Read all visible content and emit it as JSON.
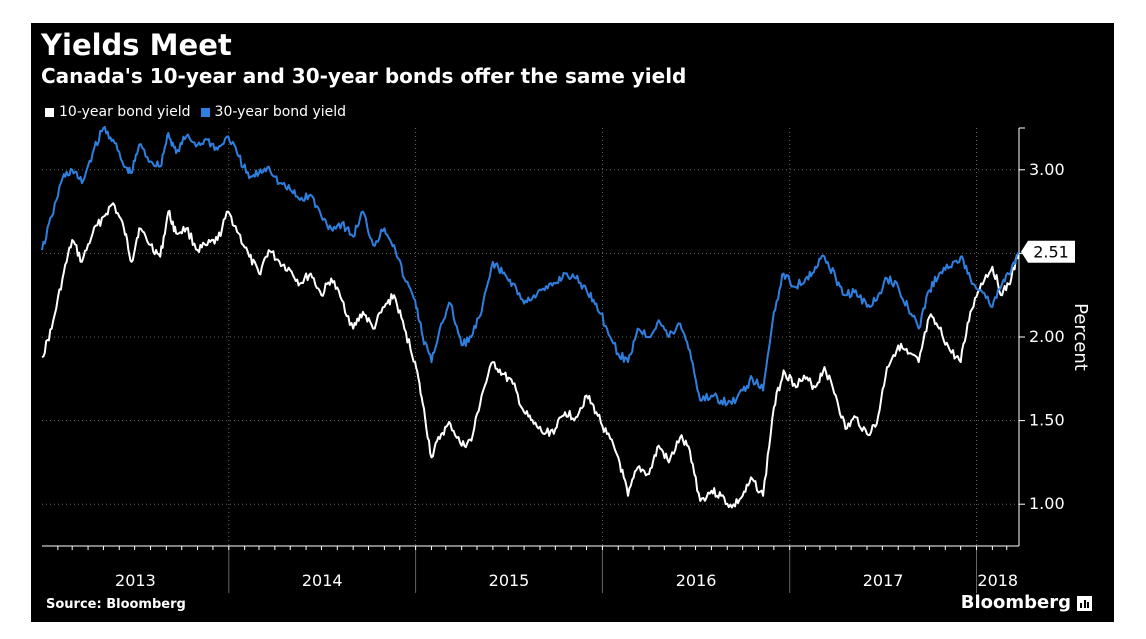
{
  "title": "Yields Meet",
  "subtitle": "Canada's 10-year and 30-year bonds offer the same yield",
  "source": "Source: Bloomberg",
  "brand": "Bloomberg",
  "brand_icon": "bar-chart-icon",
  "colors": {
    "background": "#000000",
    "series_10y": "#ffffff",
    "series_30y": "#2f7fe0",
    "grid": "#666666",
    "axis_text": "#ffffff"
  },
  "chart_data": {
    "type": "line",
    "title": "Yields Meet",
    "subtitle": "Canada's 10-year and 30-year bonds offer the same yield",
    "ylabel": "Percent",
    "ylim": [
      0.75,
      3.25
    ],
    "yticks": [
      1.0,
      1.5,
      2.0,
      2.5,
      3.0
    ],
    "ytick_labels": [
      "1.00",
      "1.50",
      "2.00",
      "",
      "3.00"
    ],
    "xlim": [
      "2013-01-01",
      "2018-03-25"
    ],
    "x_tick_labels": [
      "2013",
      "2014",
      "2015",
      "2016",
      "2017",
      "2018"
    ],
    "grid": true,
    "legend_position": "top-left",
    "last_value_label": "2.51",
    "series": [
      {
        "name": "10-year bond yield",
        "color": "#ffffff",
        "x": [
          "2013-01-01",
          "2013-01-20",
          "2013-02-10",
          "2013-03-01",
          "2013-03-20",
          "2013-04-10",
          "2013-05-01",
          "2013-05-20",
          "2013-06-10",
          "2013-06-25",
          "2013-07-10",
          "2013-08-01",
          "2013-08-20",
          "2013-09-05",
          "2013-09-20",
          "2013-10-10",
          "2013-11-01",
          "2013-11-20",
          "2013-12-10",
          "2013-12-31",
          "2014-01-20",
          "2014-02-10",
          "2014-03-01",
          "2014-03-20",
          "2014-04-10",
          "2014-05-01",
          "2014-05-20",
          "2014-06-10",
          "2014-07-01",
          "2014-07-20",
          "2014-08-10",
          "2014-09-01",
          "2014-09-20",
          "2014-10-10",
          "2014-11-01",
          "2014-11-20",
          "2014-12-10",
          "2014-12-31",
          "2015-01-15",
          "2015-02-01",
          "2015-02-20",
          "2015-03-10",
          "2015-04-01",
          "2015-04-20",
          "2015-05-10",
          "2015-06-01",
          "2015-06-20",
          "2015-07-10",
          "2015-08-01",
          "2015-08-20",
          "2015-09-10",
          "2015-10-01",
          "2015-10-20",
          "2015-11-10",
          "2015-12-01",
          "2015-12-20",
          "2016-01-10",
          "2016-02-01",
          "2016-02-20",
          "2016-03-10",
          "2016-04-01",
          "2016-04-20",
          "2016-05-10",
          "2016-06-01",
          "2016-06-20",
          "2016-07-10",
          "2016-08-01",
          "2016-08-20",
          "2016-09-10",
          "2016-10-01",
          "2016-10-20",
          "2016-11-10",
          "2016-12-01",
          "2016-12-20",
          "2017-01-10",
          "2017-02-01",
          "2017-02-20",
          "2017-03-10",
          "2017-04-01",
          "2017-04-20",
          "2017-05-10",
          "2017-06-01",
          "2017-06-20",
          "2017-07-10",
          "2017-08-01",
          "2017-08-20",
          "2017-09-10",
          "2017-10-01",
          "2017-10-20",
          "2017-11-10",
          "2017-12-01",
          "2017-12-20",
          "2018-01-10",
          "2018-02-01",
          "2018-02-20",
          "2018-03-10",
          "2018-03-25"
        ],
        "values": [
          1.88,
          2.05,
          2.35,
          2.58,
          2.45,
          2.62,
          2.72,
          2.8,
          2.65,
          2.45,
          2.65,
          2.55,
          2.48,
          2.75,
          2.62,
          2.65,
          2.52,
          2.55,
          2.58,
          2.75,
          2.62,
          2.48,
          2.38,
          2.52,
          2.45,
          2.4,
          2.32,
          2.38,
          2.25,
          2.35,
          2.22,
          2.05,
          2.15,
          2.05,
          2.18,
          2.25,
          2.05,
          1.85,
          1.6,
          1.28,
          1.42,
          1.48,
          1.35,
          1.38,
          1.65,
          1.85,
          1.78,
          1.72,
          1.55,
          1.48,
          1.42,
          1.45,
          1.55,
          1.52,
          1.65,
          1.55,
          1.42,
          1.28,
          1.05,
          1.22,
          1.18,
          1.35,
          1.25,
          1.4,
          1.32,
          1.02,
          1.08,
          1.05,
          0.98,
          1.05,
          1.15,
          1.05,
          1.58,
          1.8,
          1.72,
          1.75,
          1.7,
          1.82,
          1.65,
          1.45,
          1.52,
          1.42,
          1.48,
          1.82,
          1.95,
          1.9,
          1.85,
          2.12,
          2.05,
          1.92,
          1.85,
          2.15,
          2.32,
          2.42,
          2.25,
          2.35,
          2.51
        ]
      },
      {
        "name": "30-year bond yield",
        "color": "#2f7fe0",
        "x": [
          "2013-01-01",
          "2013-01-20",
          "2013-02-10",
          "2013-03-01",
          "2013-03-20",
          "2013-04-10",
          "2013-05-01",
          "2013-05-20",
          "2013-06-10",
          "2013-06-25",
          "2013-07-10",
          "2013-08-01",
          "2013-08-20",
          "2013-09-05",
          "2013-09-20",
          "2013-10-10",
          "2013-11-01",
          "2013-11-20",
          "2013-12-10",
          "2013-12-31",
          "2014-01-20",
          "2014-02-10",
          "2014-03-01",
          "2014-03-20",
          "2014-04-10",
          "2014-05-01",
          "2014-05-20",
          "2014-06-10",
          "2014-07-01",
          "2014-07-20",
          "2014-08-10",
          "2014-09-01",
          "2014-09-20",
          "2014-10-10",
          "2014-11-01",
          "2014-11-20",
          "2014-12-10",
          "2014-12-31",
          "2015-01-15",
          "2015-02-01",
          "2015-02-20",
          "2015-03-10",
          "2015-04-01",
          "2015-04-20",
          "2015-05-10",
          "2015-06-01",
          "2015-06-20",
          "2015-07-10",
          "2015-08-01",
          "2015-08-20",
          "2015-09-10",
          "2015-10-01",
          "2015-10-20",
          "2015-11-10",
          "2015-12-01",
          "2015-12-20",
          "2016-01-10",
          "2016-02-01",
          "2016-02-20",
          "2016-03-10",
          "2016-04-01",
          "2016-04-20",
          "2016-05-10",
          "2016-06-01",
          "2016-06-20",
          "2016-07-10",
          "2016-08-01",
          "2016-08-20",
          "2016-09-10",
          "2016-10-01",
          "2016-10-20",
          "2016-11-10",
          "2016-12-01",
          "2016-12-20",
          "2017-01-10",
          "2017-02-01",
          "2017-02-20",
          "2017-03-10",
          "2017-04-01",
          "2017-04-20",
          "2017-05-10",
          "2017-06-01",
          "2017-06-20",
          "2017-07-10",
          "2017-08-01",
          "2017-08-20",
          "2017-09-10",
          "2017-10-01",
          "2017-10-20",
          "2017-11-10",
          "2017-12-01",
          "2017-12-20",
          "2018-01-10",
          "2018-02-01",
          "2018-02-20",
          "2018-03-10",
          "2018-03-25"
        ],
        "values": [
          2.52,
          2.72,
          2.95,
          3.0,
          2.92,
          3.1,
          3.25,
          3.18,
          3.02,
          2.98,
          3.15,
          3.05,
          3.02,
          3.22,
          3.1,
          3.2,
          3.15,
          3.18,
          3.12,
          3.2,
          3.08,
          2.95,
          2.98,
          3.02,
          2.92,
          2.88,
          2.82,
          2.85,
          2.72,
          2.65,
          2.68,
          2.6,
          2.75,
          2.55,
          2.65,
          2.55,
          2.35,
          2.22,
          2.0,
          1.85,
          2.08,
          2.2,
          1.95,
          2.0,
          2.15,
          2.45,
          2.38,
          2.32,
          2.2,
          2.25,
          2.28,
          2.32,
          2.38,
          2.35,
          2.28,
          2.2,
          2.05,
          1.9,
          1.85,
          2.05,
          2.0,
          2.1,
          2.0,
          2.08,
          1.92,
          1.62,
          1.65,
          1.62,
          1.6,
          1.68,
          1.75,
          1.68,
          2.15,
          2.38,
          2.3,
          2.35,
          2.42,
          2.48,
          2.35,
          2.25,
          2.28,
          2.18,
          2.22,
          2.35,
          2.3,
          2.18,
          2.05,
          2.28,
          2.38,
          2.42,
          2.48,
          2.35,
          2.28,
          2.18,
          2.32,
          2.4,
          2.51
        ]
      }
    ]
  }
}
